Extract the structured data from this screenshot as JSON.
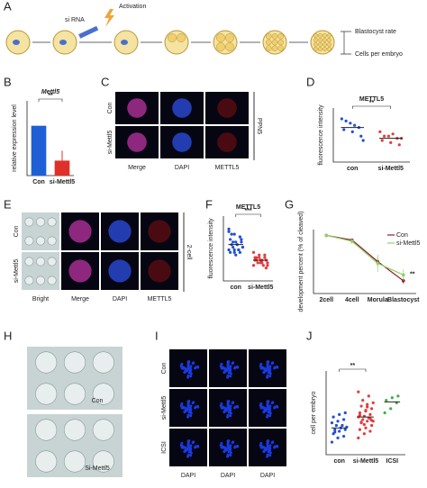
{
  "panel_labels": [
    "A",
    "B",
    "C",
    "D",
    "E",
    "F",
    "G",
    "H",
    "I",
    "J"
  ],
  "diagram": {
    "sirna": "si RNA",
    "activation": "Activation",
    "outcomes": [
      "Blastocyst rate",
      "Cells per embryo"
    ]
  },
  "images": {
    "C": {
      "rows": [
        "Con",
        "si-Mettl5"
      ],
      "cols": [
        "Merge",
        "DAPI",
        "METTL5"
      ],
      "side": "PPN5"
    },
    "E": {
      "rows": [
        "Con",
        "si-Mettl5"
      ],
      "cols": [
        "Bright",
        "Merge",
        "DAPI",
        "METTL5"
      ],
      "side": "2-cell"
    },
    "H": {
      "labels": [
        "Con",
        "Si-Mettl5"
      ]
    },
    "I": {
      "rows": [
        "Con",
        "si-Mettl5",
        "ICSI"
      ],
      "cols": [
        "DAPI",
        "DAPI",
        "DAPI"
      ]
    }
  },
  "chart_data": [
    {
      "type": "bar",
      "title": "Mettl5",
      "y_label": "relative expression level",
      "categories": [
        "Con",
        "si-Mettl5"
      ],
      "values": [
        1,
        0.3
      ],
      "errors": [
        0,
        0.2
      ],
      "colors": [
        "#1f5fd6",
        "#e0302a"
      ],
      "ylim": [
        0,
        1.5
      ],
      "annotation": "**"
    },
    {
      "type": "dot",
      "title": "METTL5",
      "y_label": "fluorescence intensity",
      "categories": [
        "con",
        "si-Mettl5"
      ],
      "values": [
        [
          30,
          28,
          26,
          25,
          24,
          22,
          29,
          27,
          20
        ],
        [
          24,
          22,
          21,
          20,
          19,
          18,
          22,
          23,
          21
        ]
      ],
      "means": [
        26,
        21
      ],
      "colors": [
        "#1f4fd8",
        "#e53a3a"
      ],
      "ylim": [
        10,
        35
      ],
      "annotation": "**"
    },
    {
      "type": "dot",
      "title": "METTL5",
      "y_label": "fluorescence intensity",
      "categories": [
        "con",
        "si-Mettl5"
      ],
      "values": [
        [
          20,
          18,
          17,
          16,
          15,
          15,
          14,
          14,
          13,
          13,
          12,
          12,
          12,
          11,
          11,
          10,
          16,
          18,
          14,
          13,
          15,
          12,
          19,
          11,
          17
        ],
        [
          11,
          10,
          9,
          9,
          8,
          8,
          8,
          7,
          7,
          7,
          6,
          6,
          9,
          10,
          8,
          7,
          5,
          9,
          8,
          6
        ]
      ],
      "means": [
        14,
        8
      ],
      "colors": [
        "#1f4fd8",
        "#e53a3a"
      ],
      "ylim": [
        0,
        25
      ],
      "annotation": "***"
    },
    {
      "type": "line",
      "y_label": "development percent (% of cleaved)",
      "categories": [
        "2cell",
        "4cell",
        "Morula",
        "Blastocyst"
      ],
      "series": [
        {
          "name": "Con",
          "color": "#8b1a2b",
          "values": [
            100,
            92,
            55,
            22
          ],
          "errors": [
            0,
            3,
            8,
            5
          ]
        },
        {
          "name": "si-Mettl5",
          "color": "#8fd16b",
          "values": [
            100,
            90,
            52,
            32
          ],
          "errors": [
            0,
            5,
            15,
            10
          ]
        }
      ],
      "ylim": [
        0,
        110
      ],
      "legend": "upper right",
      "annotation": "**"
    },
    {
      "type": "dot",
      "y_label": "cell per embryo",
      "categories": [
        "con",
        "si-Mettl5",
        "ICSI"
      ],
      "values": [
        [
          15,
          20,
          22,
          25,
          28,
          30,
          30,
          32,
          33,
          35,
          35,
          38,
          40,
          42,
          45,
          48,
          50,
          27
        ],
        [
          20,
          25,
          28,
          30,
          32,
          35,
          38,
          40,
          40,
          42,
          44,
          45,
          46,
          48,
          50,
          52,
          55,
          58,
          60,
          62,
          65,
          70,
          75,
          36,
          43,
          47,
          53,
          41,
          39,
          57
        ],
        [
          50,
          55,
          62,
          65,
          68,
          70
        ]
      ],
      "means": [
        32,
        45,
        63
      ],
      "colors": [
        "#1f4fd8",
        "#e53a3a",
        "#3cb043"
      ],
      "ylim": [
        0,
        100
      ],
      "annotation": "**"
    }
  ]
}
